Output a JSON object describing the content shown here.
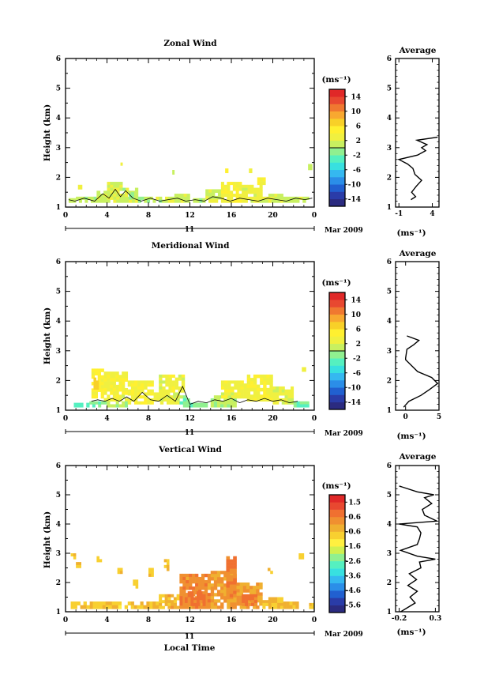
{
  "chart_data": [
    {
      "type": "heatmap",
      "title": "Zonal Wind",
      "ylabel": "Height (km)",
      "x_ticks": [
        "0",
        "4",
        "8",
        "12",
        "16",
        "20",
        "0"
      ],
      "y_ticks": [
        "1",
        "2",
        "3",
        "4",
        "5",
        "6"
      ],
      "ylim": [
        1,
        6
      ],
      "xlim": [
        0,
        24
      ],
      "date_day": "11",
      "date_label": "Mar 2009",
      "colorbar": {
        "unit": "(ms⁻¹)",
        "ticks": [
          "14",
          "10",
          "6",
          "2",
          "-2",
          "-6",
          "-10",
          "-14"
        ],
        "range": [
          -16,
          16
        ]
      },
      "field": {
        "blocks": [
          {
            "t": [
              0.3,
              1.0
            ],
            "h": [
              1.15,
              1.3
            ],
            "v": 0.5
          },
          {
            "t": [
              1.0,
              3.0
            ],
            "h": [
              1.15,
              1.35
            ],
            "v": 0.5
          },
          {
            "t": [
              1.2,
              1.6
            ],
            "h": [
              1.6,
              1.75
            ],
            "v": 1.0
          },
          {
            "t": [
              3.0,
              4.0
            ],
            "h": [
              1.15,
              1.55
            ],
            "v": 1.0
          },
          {
            "t": [
              4.0,
              5.5
            ],
            "h": [
              1.15,
              1.85
            ],
            "v": 1.5
          },
          {
            "t": [
              5.5,
              7.0
            ],
            "h": [
              1.15,
              1.65
            ],
            "v": 1.0
          },
          {
            "t": [
              5.7,
              6.0
            ],
            "h": [
              1.25,
              1.55
            ],
            "v": 3.0
          },
          {
            "t": [
              6.3,
              6.6
            ],
            "h": [
              1.3,
              1.5
            ],
            "v": -0.5
          },
          {
            "t": [
              7.0,
              8.7
            ],
            "h": [
              1.15,
              1.35
            ],
            "v": 0.5
          },
          {
            "t": [
              8.7,
              10.5
            ],
            "h": [
              1.15,
              1.35
            ],
            "v": 1.0
          },
          {
            "t": [
              10.5,
              12.0
            ],
            "h": [
              1.15,
              1.45
            ],
            "v": 1.0
          },
          {
            "t": [
              12.0,
              13.5
            ],
            "h": [
              1.15,
              1.3
            ],
            "v": 0.5
          },
          {
            "t": [
              13.5,
              15.0
            ],
            "h": [
              1.15,
              1.6
            ],
            "v": 1.0
          },
          {
            "t": [
              15.0,
              17.0
            ],
            "h": [
              1.15,
              1.85
            ],
            "v": 3.5
          },
          {
            "t": [
              17.0,
              19.0
            ],
            "h": [
              1.15,
              1.75
            ],
            "v": 2.5
          },
          {
            "t": [
              18.5,
              19.3
            ],
            "h": [
              1.75,
              2.0
            ],
            "v": 4.0
          },
          {
            "t": [
              19.0,
              21.0
            ],
            "h": [
              1.15,
              1.45
            ],
            "v": 1.5
          },
          {
            "t": [
              21.0,
              23.5
            ],
            "h": [
              1.15,
              1.35
            ],
            "v": 1.0
          },
          {
            "t": [
              15.4,
              15.7
            ],
            "h": [
              2.15,
              2.3
            ],
            "v": 4.0
          },
          {
            "t": [
              17.7,
              18.0
            ],
            "h": [
              2.15,
              2.3
            ],
            "v": 3.0
          },
          {
            "t": [
              23.4,
              23.8
            ],
            "h": [
              2.25,
              2.45
            ],
            "v": 2.0
          },
          {
            "t": [
              10.3,
              10.5
            ],
            "h": [
              2.1,
              2.25
            ],
            "v": 2.0
          },
          {
            "t": [
              5.3,
              5.5
            ],
            "h": [
              2.4,
              2.5
            ],
            "v": 2.0
          }
        ],
        "contour_x": [
          0.3,
          0.9,
          1.8,
          2.8,
          3.6,
          4.2,
          4.8,
          5.3,
          5.8,
          6.5,
          7.3,
          8.2,
          9.1,
          9.9,
          10.8,
          11.6,
          12.5,
          13.4,
          14.2,
          15.0,
          15.9,
          16.8,
          17.7,
          18.6,
          19.5,
          20.4,
          21.3,
          22.2,
          23.1,
          23.8
        ],
        "contour_y": [
          1.25,
          1.2,
          1.3,
          1.2,
          1.45,
          1.3,
          1.6,
          1.35,
          1.55,
          1.3,
          1.2,
          1.3,
          1.2,
          1.25,
          1.3,
          1.2,
          1.25,
          1.2,
          1.35,
          1.3,
          1.2,
          1.3,
          1.25,
          1.2,
          1.3,
          1.25,
          1.2,
          1.3,
          1.25,
          1.3
        ]
      },
      "profile": {
        "title": "Average",
        "xlabel": "(ms⁻¹)",
        "x_ticks": [
          "-1",
          "4"
        ],
        "xlim": [
          -1.5,
          5
        ],
        "y": [
          1.25,
          1.35,
          1.5,
          1.7,
          1.9,
          2.1,
          2.3,
          2.45,
          2.6,
          2.75,
          2.9,
          3.0,
          3.1,
          3.25,
          3.35
        ],
        "x": [
          0.8,
          1.5,
          0.9,
          1.6,
          2.4,
          1.4,
          1.1,
          0.3,
          -1.0,
          1.8,
          3.0,
          2.4,
          3.2,
          1.7,
          4.8
        ]
      }
    },
    {
      "type": "heatmap",
      "title": "Meridional Wind",
      "ylabel": "Height (km)",
      "x_ticks": [
        "0",
        "4",
        "8",
        "12",
        "16",
        "20",
        "0"
      ],
      "y_ticks": [
        "1",
        "2",
        "3",
        "4",
        "5",
        "6"
      ],
      "ylim": [
        1,
        6
      ],
      "xlim": [
        0,
        24
      ],
      "date_day": "11",
      "date_label": "Mar 2009",
      "colorbar": {
        "unit": "(ms⁻¹)",
        "ticks": [
          "14",
          "10",
          "6",
          "2",
          "-2",
          "-6",
          "-10",
          "-14"
        ],
        "range": [
          -16,
          16
        ]
      },
      "field": {
        "blocks": [
          {
            "t": [
              0.8,
              2.3
            ],
            "h": [
              1.1,
              1.25
            ],
            "v": -3.0
          },
          {
            "t": [
              2.3,
              3.7
            ],
            "h": [
              1.1,
              1.3
            ],
            "v": -2.0
          },
          {
            "t": [
              2.5,
              3.7
            ],
            "h": [
              1.4,
              2.4
            ],
            "v": 4.5
          },
          {
            "t": [
              2.7,
              3.2
            ],
            "h": [
              1.7,
              2.1
            ],
            "v": 6.5
          },
          {
            "t": [
              3.7,
              6.0
            ],
            "h": [
              1.3,
              2.3
            ],
            "v": 3.0
          },
          {
            "t": [
              3.7,
              6.0
            ],
            "h": [
              1.1,
              1.3
            ],
            "v": 0.5
          },
          {
            "t": [
              6.0,
              8.5
            ],
            "h": [
              1.2,
              2.0
            ],
            "v": 3.5
          },
          {
            "t": [
              8.5,
              11.0
            ],
            "h": [
              1.2,
              1.6
            ],
            "v": 2.5
          },
          {
            "t": [
              9.0,
              11.5
            ],
            "h": [
              1.6,
              2.2
            ],
            "v": 3.0
          },
          {
            "t": [
              11.0,
              12.0
            ],
            "h": [
              1.1,
              1.5
            ],
            "v": -1.0
          },
          {
            "t": [
              12.0,
              14.0
            ],
            "h": [
              1.1,
              1.25
            ],
            "v": -2.0
          },
          {
            "t": [
              14.0,
              16.5
            ],
            "h": [
              1.1,
              1.5
            ],
            "v": 0.5
          },
          {
            "t": [
              15.0,
              17.5
            ],
            "h": [
              1.4,
              2.0
            ],
            "v": 3.0
          },
          {
            "t": [
              17.5,
              20.0
            ],
            "h": [
              1.3,
              2.2
            ],
            "v": 3.5
          },
          {
            "t": [
              20.0,
              22.0
            ],
            "h": [
              1.2,
              1.8
            ],
            "v": 2.0
          },
          {
            "t": [
              22.0,
              23.5
            ],
            "h": [
              1.1,
              1.3
            ],
            "v": -2.0
          },
          {
            "t": [
              6.8,
              7.2
            ],
            "h": [
              2.3,
              2.45
            ],
            "v": 0.0
          },
          {
            "t": [
              22.8,
              23.2
            ],
            "h": [
              2.3,
              2.45
            ],
            "v": 3.0
          }
        ],
        "contour_x": [
          2.5,
          3.1,
          3.8,
          4.5,
          5.2,
          5.9,
          6.6,
          7.4,
          8.2,
          9.0,
          9.8,
          10.6,
          11.3,
          12.0,
          12.8,
          13.6,
          14.4,
          15.2,
          16.0,
          16.8,
          17.6,
          18.4,
          19.2,
          20.0,
          20.8,
          21.6,
          22.4
        ],
        "contour_y": [
          1.3,
          1.35,
          1.3,
          1.4,
          1.3,
          1.45,
          1.3,
          1.6,
          1.35,
          1.3,
          1.5,
          1.3,
          1.8,
          1.2,
          1.3,
          1.25,
          1.35,
          1.3,
          1.4,
          1.25,
          1.35,
          1.3,
          1.4,
          1.3,
          1.35,
          1.25,
          1.3
        ]
      },
      "profile": {
        "title": "Average",
        "xlabel": "(ms⁻¹)",
        "x_ticks": [
          "0",
          "5"
        ],
        "xlim": [
          -1.5,
          5
        ],
        "y": [
          1.1,
          1.3,
          1.5,
          1.7,
          1.9,
          2.1,
          2.3,
          2.5,
          2.7,
          2.75,
          3.05,
          3.2,
          3.35,
          3.5
        ],
        "x": [
          -0.3,
          0.5,
          2.3,
          3.6,
          4.8,
          3.9,
          1.8,
          0.9,
          0.0,
          0.0,
          0.2,
          1.2,
          2.0,
          0.2
        ]
      }
    },
    {
      "type": "heatmap",
      "title": "Vertical Wind",
      "ylabel": "Height (km)",
      "xlabel": "Local Time",
      "x_ticks": [
        "0",
        "4",
        "8",
        "12",
        "16",
        "20",
        "0"
      ],
      "y_ticks": [
        "1",
        "2",
        "3",
        "4",
        "5",
        "6"
      ],
      "ylim": [
        1,
        6
      ],
      "xlim": [
        0,
        24
      ],
      "date_day": "11",
      "date_label": "Mar 2009",
      "colorbar": {
        "unit": "(ms⁻¹)",
        "ticks": [
          "1.5",
          "0.6",
          "-0.6",
          "-1.6",
          "-2.6",
          "-3.6",
          "-4.6",
          "-5.6"
        ],
        "range": [
          -6.2,
          2.0
        ]
      },
      "field": {
        "blocks": [
          {
            "t": [
              0.5,
              6.0
            ],
            "h": [
              1.1,
              1.35
            ],
            "v": -0.8
          },
          {
            "t": [
              0.5,
              1.0
            ],
            "h": [
              2.8,
              3.0
            ],
            "v": -0.8
          },
          {
            "t": [
              1.0,
              1.5
            ],
            "h": [
              2.5,
              2.7
            ],
            "v": -0.8
          },
          {
            "t": [
              3.0,
              3.5
            ],
            "h": [
              2.7,
              2.9
            ],
            "v": -0.8
          },
          {
            "t": [
              5.0,
              5.5
            ],
            "h": [
              2.3,
              2.5
            ],
            "v": -0.8
          },
          {
            "t": [
              6.0,
              9.0
            ],
            "h": [
              1.1,
              1.35
            ],
            "v": -0.6
          },
          {
            "t": [
              6.5,
              7.0
            ],
            "h": [
              1.8,
              2.1
            ],
            "v": -0.8
          },
          {
            "t": [
              8.0,
              8.5
            ],
            "h": [
              2.2,
              2.5
            ],
            "v": -0.7
          },
          {
            "t": [
              9.0,
              11.0
            ],
            "h": [
              1.1,
              1.6
            ],
            "v": -0.4
          },
          {
            "t": [
              9.5,
              10.0
            ],
            "h": [
              2.4,
              2.8
            ],
            "v": -0.5
          },
          {
            "t": [
              11.0,
              14.0
            ],
            "h": [
              1.1,
              2.3
            ],
            "v": 0.2
          },
          {
            "t": [
              11.5,
              13.5
            ],
            "h": [
              1.2,
              1.7
            ],
            "v": 0.6
          },
          {
            "t": [
              14.0,
              16.5
            ],
            "h": [
              1.1,
              2.4
            ],
            "v": 0.0
          },
          {
            "t": [
              15.5,
              16.5
            ],
            "h": [
              1.5,
              2.9
            ],
            "v": 0.5
          },
          {
            "t": [
              16.5,
              19.0
            ],
            "h": [
              1.1,
              2.0
            ],
            "v": -0.2
          },
          {
            "t": [
              17.0,
              18.5
            ],
            "h": [
              1.2,
              1.6
            ],
            "v": 0.6
          },
          {
            "t": [
              19.0,
              21.0
            ],
            "h": [
              1.1,
              1.5
            ],
            "v": -0.5
          },
          {
            "t": [
              21.0,
              22.5
            ],
            "h": [
              1.1,
              1.35
            ],
            "v": -0.5
          },
          {
            "t": [
              23.5,
              24.0
            ],
            "h": [
              1.1,
              1.3
            ],
            "v": -0.6
          },
          {
            "t": [
              19.5,
              20.0
            ],
            "h": [
              2.3,
              2.5
            ],
            "v": -0.6
          },
          {
            "t": [
              22.5,
              23.0
            ],
            "h": [
              2.8,
              3.0
            ],
            "v": -0.8
          }
        ],
        "contour_x": [],
        "contour_y": []
      },
      "profile": {
        "title": "Average",
        "xlabel": "(ms⁻¹)",
        "x_ticks": [
          "-0.2",
          "0.3"
        ],
        "xlim": [
          -0.25,
          0.35
        ],
        "y": [
          1.0,
          1.3,
          1.5,
          1.7,
          1.9,
          2.1,
          2.3,
          2.5,
          2.7,
          2.8,
          2.9,
          3.1,
          3.3,
          3.5,
          3.7,
          3.9,
          4.0,
          4.1,
          4.3,
          4.5,
          4.7,
          4.9,
          5.0,
          5.1,
          5.3
        ],
        "x": [
          -0.18,
          0.02,
          -0.05,
          0.05,
          -0.08,
          0.04,
          -0.06,
          0.1,
          0.08,
          0.3,
          0.05,
          -0.18,
          0.05,
          0.08,
          0.1,
          0.05,
          -0.2,
          0.32,
          0.15,
          0.12,
          0.25,
          0.15,
          0.28,
          0.05,
          -0.2
        ]
      }
    }
  ]
}
